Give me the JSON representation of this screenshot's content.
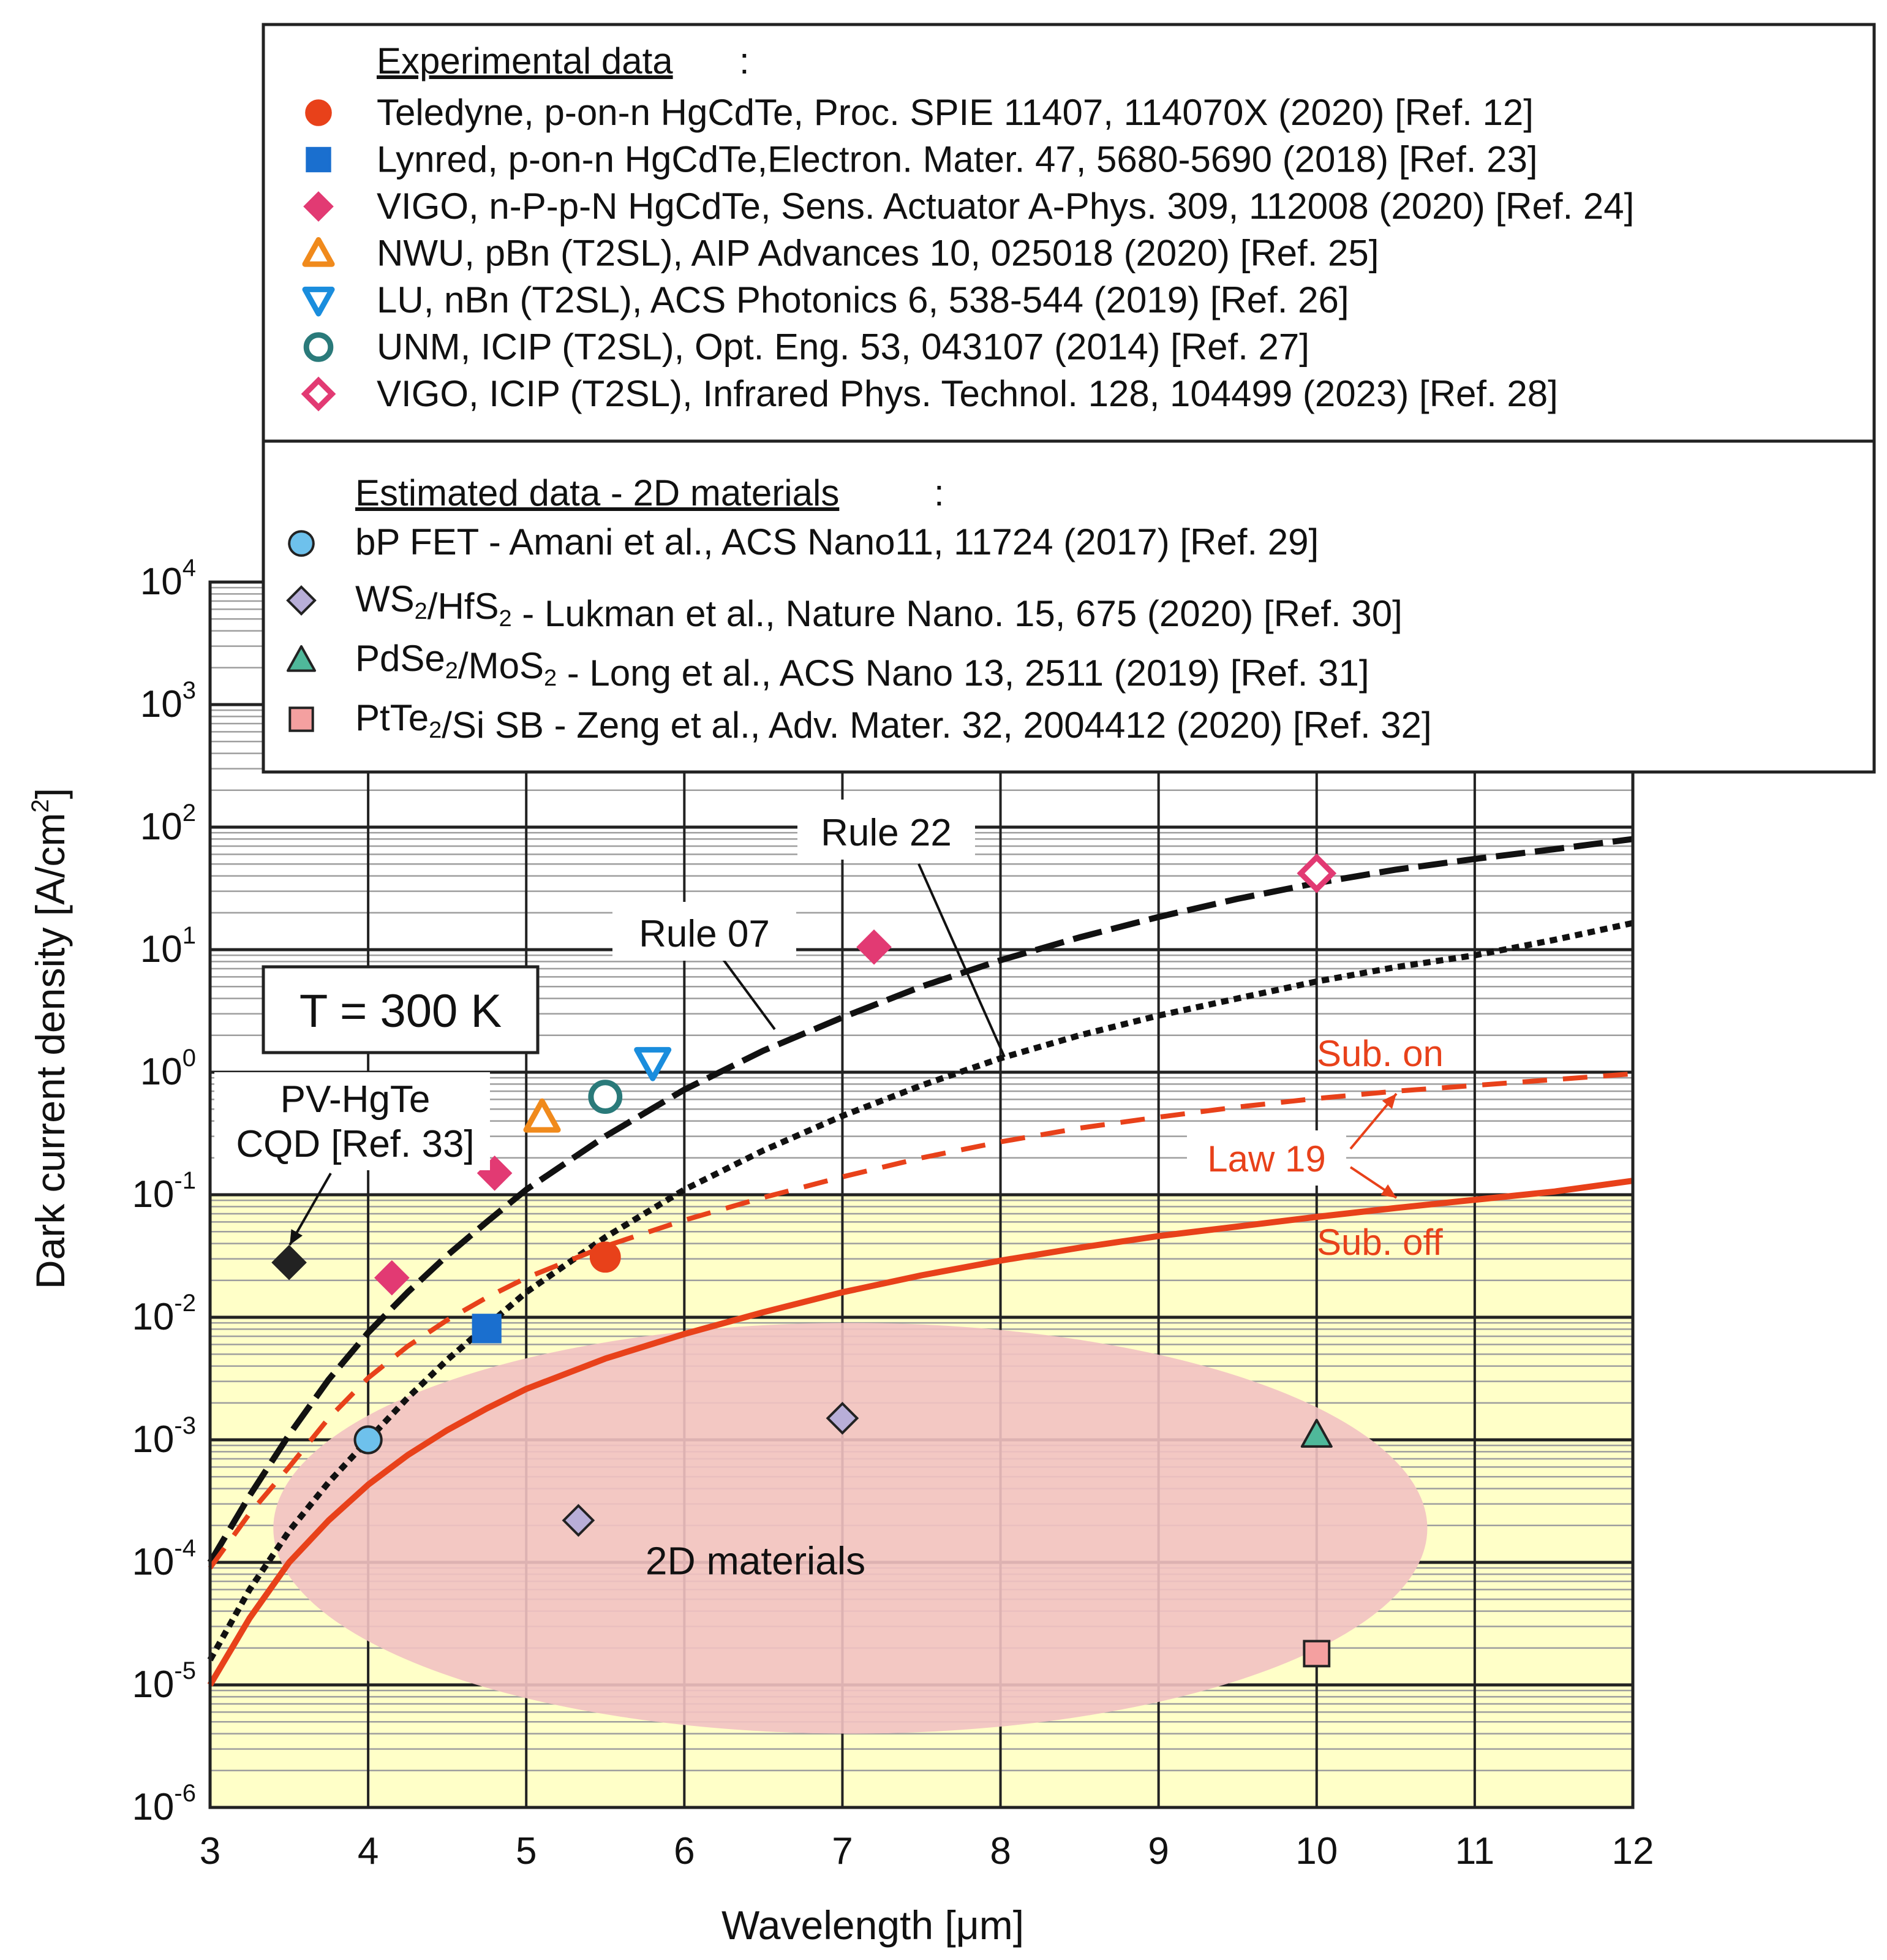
{
  "chart_data": {
    "type": "scatter",
    "title": "",
    "xlabel": "Wavelength [μm]",
    "ylabel": "Dark current density [A/cm²]",
    "xlim": [
      3,
      12
    ],
    "ylim_log10": [
      -6,
      4
    ],
    "x_ticks": [
      3,
      4,
      5,
      6,
      7,
      8,
      9,
      10,
      11,
      12
    ],
    "y_ticks": [
      {
        "base": "10",
        "exp": "4",
        "value": 10000
      },
      {
        "base": "10",
        "exp": "3",
        "value": 1000
      },
      {
        "base": "10",
        "exp": "2",
        "value": 100
      },
      {
        "base": "10",
        "exp": "1",
        "value": 10
      },
      {
        "base": "10",
        "exp": "0",
        "value": 1
      },
      {
        "base": "10",
        "exp": "-1",
        "value": 0.1
      },
      {
        "base": "10",
        "exp": "-2",
        "value": 0.01
      },
      {
        "base": "10",
        "exp": "-3",
        "value": 0.001
      },
      {
        "base": "10",
        "exp": "-4",
        "value": 0.0001
      },
      {
        "base": "10",
        "exp": "-5",
        "value": 1e-05
      },
      {
        "base": "10",
        "exp": "-6",
        "value": 1e-06
      }
    ],
    "background_bands": {
      "upper_color": "#ffffff",
      "lower_color": "#ffffc8",
      "boundary_value": 0.1
    },
    "region": {
      "label": "2D materials",
      "x_range": [
        3.4,
        10.7
      ],
      "y_range": [
        4e-06,
        0.009
      ],
      "color": "#f2c2c2"
    },
    "curves": [
      {
        "name": "Rule 07",
        "style": "long-dash",
        "color": "#111111",
        "x": [
          3.0,
          3.25,
          3.5,
          3.75,
          4.0,
          4.25,
          4.5,
          4.75,
          5.0,
          5.5,
          6.0,
          6.5,
          7.0,
          7.5,
          8.0,
          8.5,
          9.0,
          9.5,
          10.0,
          10.5,
          11.0,
          11.5,
          12.0
        ],
        "y": [
          0.0001,
          0.00035,
          0.0011,
          0.0031,
          0.0075,
          0.016,
          0.032,
          0.06,
          0.11,
          0.3,
          0.72,
          1.5,
          2.8,
          5.0,
          8.2,
          12.6,
          18.5,
          26,
          35,
          45,
          55,
          66,
          80
        ]
      },
      {
        "name": "Rule 22",
        "style": "dotted",
        "color": "#111111",
        "x": [
          3.0,
          3.25,
          3.5,
          3.75,
          4.0,
          4.25,
          4.5,
          4.75,
          5.0,
          5.5,
          6.0,
          6.5,
          7.0,
          7.5,
          8.0,
          8.5,
          9.0,
          9.5,
          10.0,
          10.5,
          11.0,
          11.5,
          12.0
        ],
        "y": [
          1.6e-05,
          6e-05,
          0.00018,
          0.00045,
          0.001,
          0.0022,
          0.0045,
          0.0085,
          0.016,
          0.045,
          0.11,
          0.23,
          0.44,
          0.78,
          1.3,
          2.0,
          2.9,
          4.0,
          5.5,
          7.2,
          9.0,
          12.0,
          16.5
        ]
      },
      {
        "name": "Law 19 (Sub. on)",
        "style": "dashed",
        "color": "#e8411a",
        "x": [
          3.0,
          3.25,
          3.5,
          3.75,
          4.0,
          4.25,
          4.5,
          4.75,
          5.0,
          5.5,
          6.0,
          6.5,
          7.0,
          7.5,
          8.0,
          8.5,
          9.0,
          9.5,
          10.0,
          10.5,
          11.0,
          11.5,
          12.0
        ],
        "y": [
          9e-05,
          0.00025,
          0.0006,
          0.0015,
          0.0032,
          0.0058,
          0.0095,
          0.0145,
          0.021,
          0.038,
          0.062,
          0.095,
          0.14,
          0.2,
          0.27,
          0.35,
          0.43,
          0.52,
          0.61,
          0.7,
          0.78,
          0.87,
          0.97
        ]
      },
      {
        "name": "Law 19 (Sub. off)",
        "style": "solid",
        "color": "#e8411a",
        "x": [
          3.0,
          3.25,
          3.5,
          3.75,
          4.0,
          4.25,
          4.5,
          4.75,
          5.0,
          5.5,
          6.0,
          6.5,
          7.0,
          7.5,
          8.0,
          8.5,
          9.0,
          9.5,
          10.0,
          10.5,
          11.0,
          11.5,
          12.0
        ],
        "y": [
          1e-05,
          3.5e-05,
          0.0001,
          0.00022,
          0.00043,
          0.00075,
          0.0012,
          0.0018,
          0.0026,
          0.0046,
          0.0073,
          0.011,
          0.016,
          0.022,
          0.029,
          0.037,
          0.046,
          0.055,
          0.066,
          0.078,
          0.091,
          0.106,
          0.13
        ]
      }
    ],
    "experimental_points": [
      {
        "name": "Teledyne",
        "x": 5.5,
        "y": 0.031,
        "marker": "circle",
        "filled": true,
        "color": "#e8411a"
      },
      {
        "name": "Lynred",
        "x": 4.75,
        "y": 0.0081,
        "marker": "square",
        "filled": true,
        "color": "#1a6fcf"
      },
      {
        "name": "VIGO n-P-p-N",
        "x": 4.15,
        "y": 0.021,
        "marker": "diamond",
        "filled": true,
        "color": "#e23a73"
      },
      {
        "name": "VIGO n-P-p-N",
        "x": 4.8,
        "y": 0.15,
        "marker": "diamond",
        "filled": true,
        "color": "#e23a73"
      },
      {
        "name": "VIGO n-P-p-N",
        "x": 7.2,
        "y": 10.5,
        "marker": "diamond",
        "filled": true,
        "color": "#e23a73"
      },
      {
        "name": "NWU",
        "x": 5.1,
        "y": 0.43,
        "marker": "triangle-up",
        "filled": false,
        "color": "#f08a1c"
      },
      {
        "name": "LU",
        "x": 5.8,
        "y": 1.2,
        "marker": "triangle-down",
        "filled": false,
        "color": "#1a8ddd"
      },
      {
        "name": "UNM",
        "x": 5.5,
        "y": 0.63,
        "marker": "circle",
        "filled": false,
        "color": "#2a7a7a"
      },
      {
        "name": "VIGO ICIP",
        "x": 10.0,
        "y": 42,
        "marker": "diamond",
        "filled": false,
        "color": "#e23a73"
      },
      {
        "name": "PV-HgTe CQD",
        "x": 3.5,
        "y": 0.028,
        "marker": "diamond",
        "filled": true,
        "color": "#222222"
      }
    ],
    "estimated_points": [
      {
        "name": "bP FET",
        "x": 4.0,
        "y": 0.001,
        "marker": "circle",
        "filled": true,
        "color": "#6ec1ec"
      },
      {
        "name": "WS2/HfS2",
        "x": 5.33,
        "y": 0.00022,
        "marker": "diamond",
        "filled": true,
        "color": "#b8aed8"
      },
      {
        "name": "WS2/HfS2",
        "x": 7.0,
        "y": 0.0015,
        "marker": "diamond",
        "filled": true,
        "color": "#b8aed8"
      },
      {
        "name": "PdSe2/MoS2",
        "x": 10.0,
        "y": 0.0011,
        "marker": "triangle-up",
        "filled": true,
        "color": "#4fb89a"
      },
      {
        "name": "PtTe2/Si SB",
        "x": 10.0,
        "y": 1.8e-05,
        "marker": "square",
        "filled": true,
        "color": "#f4a0a0"
      }
    ],
    "annotations": {
      "temperature": "T = 300 K",
      "rule22": "Rule 22",
      "rule07": "Rule 07",
      "sub_on": "Sub. on",
      "sub_off": "Sub. off",
      "law19": "Law 19",
      "cqd_line1": "PV-HgTe",
      "cqd_line2": "CQD [Ref. 33]"
    },
    "legend_experimental": {
      "heading": "Experimental data",
      "heading_suffix": ":",
      "entries": [
        {
          "text": "Teledyne, p-on-n HgCdTe, Proc. SPIE 11407, 114070X (2020) [Ref. 12]",
          "marker": "circle",
          "filled": true,
          "color": "#e8411a"
        },
        {
          "text": "Lynred, p-on-n HgCdTe,Electron. Mater. 47, 5680-5690 (2018) [Ref. 23]",
          "marker": "square",
          "filled": true,
          "color": "#1a6fcf"
        },
        {
          "text": "VIGO, n-P-p-N HgCdTe, Sens. Actuator A-Phys. 309, 112008 (2020) [Ref. 24]",
          "marker": "diamond",
          "filled": true,
          "color": "#e23a73"
        },
        {
          "text": "NWU, pBn (T2SL), AIP Advances 10, 025018 (2020) [Ref. 25]",
          "marker": "triangle-up",
          "filled": false,
          "color": "#f08a1c"
        },
        {
          "text": "LU, nBn (T2SL), ACS Photonics 6, 538-544 (2019) [Ref. 26]",
          "marker": "triangle-down",
          "filled": false,
          "color": "#1a8ddd"
        },
        {
          "text": "UNM, ICIP (T2SL), Opt. Eng. 53, 043107 (2014) [Ref. 27]",
          "marker": "circle",
          "filled": false,
          "color": "#2a7a7a"
        },
        {
          "text": "VIGO, ICIP (T2SL), Infrared Phys. Technol. 128, 104499 (2023) [Ref. 28]",
          "marker": "diamond",
          "filled": false,
          "color": "#e23a73"
        }
      ]
    },
    "legend_estimated": {
      "heading": "Estimated data - 2D materials",
      "heading_suffix": ":",
      "entries": [
        {
          "parts": [
            {
              "t": "bP FET - Amani et al., ACS Nano11, 11724 (2017) [Ref. 29]",
              "sub": false
            }
          ],
          "marker": "circle",
          "filled": true,
          "color": "#6ec1ec"
        },
        {
          "parts": [
            {
              "t": "WS",
              "sub": false
            },
            {
              "t": "2",
              "sub": true
            },
            {
              "t": "/HfS",
              "sub": false
            },
            {
              "t": "2",
              "sub": true
            },
            {
              "t": " - Lukman et al., Nature Nano. 15, 675 (2020) [Ref. 30]",
              "sub": false
            }
          ],
          "marker": "diamond",
          "filled": true,
          "color": "#b8aed8"
        },
        {
          "parts": [
            {
              "t": "PdSe",
              "sub": false
            },
            {
              "t": "2",
              "sub": true
            },
            {
              "t": "/MoS",
              "sub": false
            },
            {
              "t": "2",
              "sub": true
            },
            {
              "t": " - Long et al., ACS Nano 13, 2511 (2019) [Ref. 31]",
              "sub": false
            }
          ],
          "marker": "triangle-up",
          "filled": true,
          "color": "#4fb89a"
        },
        {
          "parts": [
            {
              "t": "PtTe",
              "sub": false
            },
            {
              "t": "2",
              "sub": true
            },
            {
              "t": "/Si SB - Zeng et al., Adv. Mater. 32, 2004412 (2020) [Ref. 32]",
              "sub": false
            }
          ],
          "marker": "square",
          "filled": true,
          "color": "#f4a0a0"
        }
      ]
    }
  }
}
